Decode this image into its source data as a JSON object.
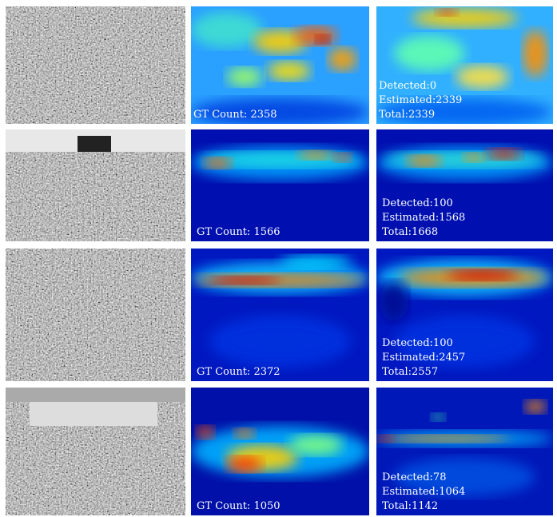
{
  "rows": [
    {
      "gt": "GT Count: 2358",
      "detected": "Detected:0",
      "estimated": "Estimated:2339",
      "total": "Total:2339"
    },
    {
      "gt": "GT Count: 1566",
      "detected": "Detected:100",
      "estimated": "Estimated:1568",
      "total": "Total:1668"
    },
    {
      "gt": "GT Count: 2372",
      "detected": "Detected:100",
      "estimated": "Estimated:2457",
      "total": "Total:2557"
    },
    {
      "gt": "GT Count: 1050",
      "detected": "Detected:78",
      "estimated": "Estimated:1064",
      "total": "Total:1142"
    }
  ]
}
